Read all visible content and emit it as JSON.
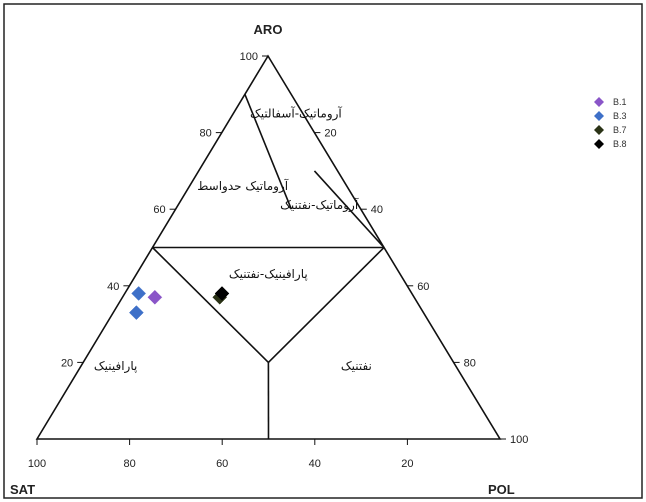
{
  "chart_data": {
    "type": "ternary",
    "axes": {
      "top": "ARO",
      "left": "SAT",
      "right": "POL"
    },
    "ticks": {
      "aro": [
        "100",
        "80",
        "60",
        "40",
        "20"
      ],
      "pol": [
        "20",
        "40",
        "60",
        "80",
        "100"
      ],
      "sat": [
        "100",
        "80",
        "60",
        "40",
        "20"
      ]
    },
    "tick_values": {
      "aro": [
        100,
        80,
        60,
        40,
        20
      ],
      "pol": [
        20,
        40,
        60,
        80,
        100
      ],
      "sat": [
        100,
        80,
        60,
        40,
        20
      ]
    },
    "regions": [
      {
        "label": "آروماتیک-آسفالتیک",
        "aro": 84,
        "pol": 14
      },
      {
        "label": "آروماتیک حدواسط",
        "aro": 65,
        "pol": 12
      },
      {
        "label": "آروماتیک-نفتنیک",
        "aro": 60,
        "pol": 31
      },
      {
        "label": "پارافینیک-نفتنیک",
        "aro": 42,
        "pol": 29
      },
      {
        "label": "پارافینیک",
        "aro": 18,
        "pol": 8
      },
      {
        "label": "نفتنیک",
        "aro": 18,
        "pol": 60
      }
    ],
    "series": [
      {
        "name": "B.1",
        "color": "#8a55c8",
        "points": [
          {
            "sat": 56,
            "aro": 37,
            "pol": 7
          }
        ]
      },
      {
        "name": "B.3",
        "color": "#3e70c8",
        "points": [
          {
            "sat": 59,
            "aro": 38,
            "pol": 3
          },
          {
            "sat": 62,
            "aro": 33,
            "pol": 5
          }
        ]
      },
      {
        "name": "B.7",
        "color": "#2b3316",
        "points": [
          {
            "sat": 42,
            "aro": 37,
            "pol": 21
          }
        ]
      },
      {
        "name": "B.8",
        "color": "#000000",
        "points": [
          {
            "sat": 41,
            "aro": 38,
            "pol": 21
          }
        ]
      }
    ],
    "legend_position": "top-right"
  }
}
